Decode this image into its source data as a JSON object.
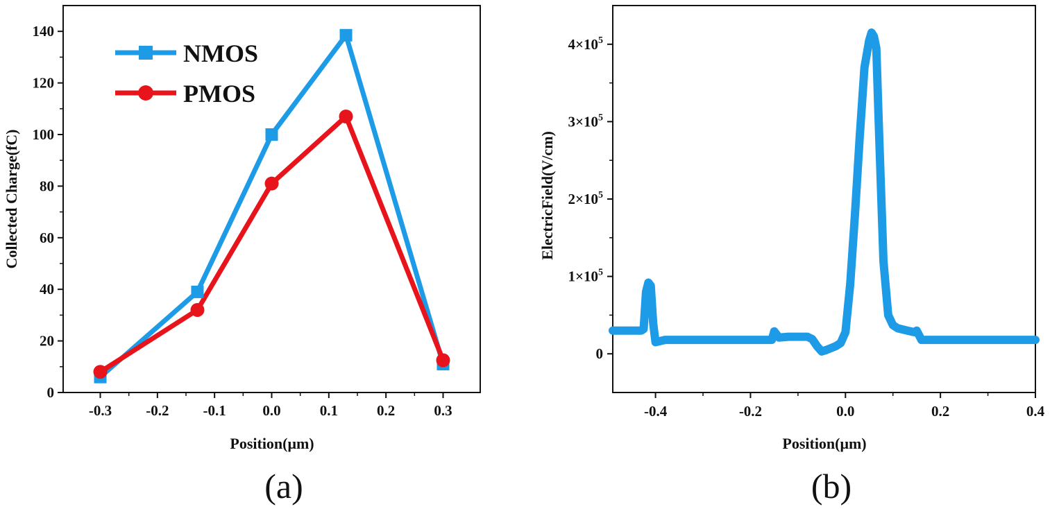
{
  "chart_data": [
    {
      "type": "line",
      "panel_label": "(a)",
      "title": "",
      "xlabel": "Position(μm)",
      "ylabel": "Collected Charge(fC)",
      "xlim": [
        -0.365,
        0.365
      ],
      "ylim": [
        0,
        150
      ],
      "xticks": [
        -0.3,
        -0.2,
        -0.1,
        0.0,
        0.1,
        0.2,
        0.3
      ],
      "xtick_labels": [
        "-0.3",
        "-0.2",
        "-0.1",
        "0.0",
        "0.1",
        "0.2",
        "0.3"
      ],
      "yticks": [
        0,
        20,
        40,
        60,
        80,
        100,
        120,
        140
      ],
      "ytick_labels": [
        "0",
        "20",
        "40",
        "60",
        "80",
        "100",
        "120",
        "140"
      ],
      "legend_position": "top-left",
      "x": [
        -0.3,
        -0.13,
        0.0,
        0.13,
        0.3
      ],
      "series": [
        {
          "name": "NMOS",
          "marker": "square",
          "color": "#1E9BE6",
          "values": [
            6,
            39,
            100,
            138.5,
            11
          ]
        },
        {
          "name": "PMOS",
          "marker": "circle",
          "color": "#E8141C",
          "values": [
            8,
            32,
            81,
            107,
            12.5
          ]
        }
      ]
    },
    {
      "type": "line",
      "panel_label": "(b)",
      "title": "",
      "xlabel": "Position(μm)",
      "ylabel": "ElectricField(V/cm)",
      "xlim": [
        -0.49,
        0.4
      ],
      "ylim": [
        -50000,
        450000
      ],
      "xticks": [
        -0.4,
        -0.2,
        0.0,
        0.2,
        0.4
      ],
      "xtick_labels": [
        "-0.4",
        "-0.2",
        "0.0",
        "0.2",
        "0.4"
      ],
      "yticks": [
        0,
        100000,
        200000,
        300000,
        400000
      ],
      "ytick_labels": [
        {
          "base": "0",
          "exp": ""
        },
        {
          "base": "1×10",
          "exp": "5"
        },
        {
          "base": "2×10",
          "exp": "5"
        },
        {
          "base": "3×10",
          "exp": "5"
        },
        {
          "base": "4×10",
          "exp": "5"
        }
      ],
      "series": [
        {
          "name": "ElectricField",
          "color": "#1E9BE6",
          "x": [
            -0.49,
            -0.43,
            -0.425,
            -0.42,
            -0.415,
            -0.41,
            -0.405,
            -0.4,
            -0.38,
            -0.3,
            -0.2,
            -0.155,
            -0.15,
            -0.145,
            -0.14,
            -0.12,
            -0.08,
            -0.07,
            -0.06,
            -0.05,
            -0.04,
            -0.02,
            -0.01,
            0.0,
            0.01,
            0.02,
            0.03,
            0.04,
            0.05,
            0.055,
            0.06,
            0.065,
            0.07,
            0.08,
            0.09,
            0.1,
            0.11,
            0.13,
            0.145,
            0.15,
            0.16,
            0.2,
            0.3,
            0.4
          ],
          "values": [
            30000,
            30000,
            32000,
            80000,
            92000,
            88000,
            40000,
            15000,
            18000,
            18000,
            18000,
            18000,
            29000,
            25000,
            21000,
            22000,
            22000,
            19000,
            10000,
            3000,
            5000,
            10000,
            14000,
            28000,
            90000,
            180000,
            280000,
            370000,
            405000,
            415000,
            410000,
            395000,
            300000,
            120000,
            50000,
            37000,
            33000,
            30000,
            28000,
            30000,
            18000,
            18000,
            18000,
            18000
          ]
        }
      ]
    }
  ]
}
